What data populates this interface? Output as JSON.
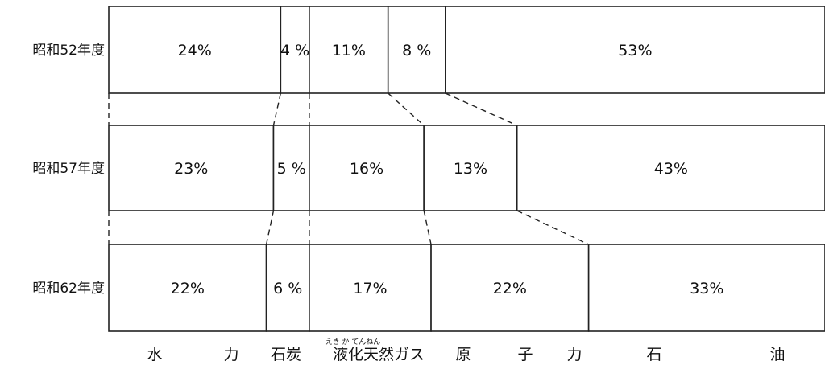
{
  "chart_data": {
    "type": "bar",
    "stacked": true,
    "orientation": "horizontal",
    "normalized_to_percent": true,
    "categories": [
      "昭和52年度",
      "昭和57年度",
      "昭和62年度"
    ],
    "series": [
      {
        "name": "水力",
        "values": [
          24,
          23,
          22
        ],
        "labels": [
          "24%",
          "23%",
          "22%"
        ]
      },
      {
        "name": "石炭",
        "values": [
          4,
          5,
          6
        ],
        "labels": [
          "4 %",
          "5 %",
          "6 %"
        ]
      },
      {
        "name": "液化天然ガス",
        "values": [
          11,
          16,
          17
        ],
        "labels": [
          "11%",
          "16%",
          "17%"
        ]
      },
      {
        "name": "原子力",
        "values": [
          8,
          13,
          22
        ],
        "labels": [
          "8 %",
          "13%",
          "22%"
        ]
      },
      {
        "name": "石油",
        "values": [
          53,
          43,
          33
        ],
        "labels": [
          "53%",
          "43%",
          "33%"
        ]
      }
    ],
    "legend_labels": [
      "水",
      "力",
      "石炭",
      "液化天然ガス",
      "原",
      "子",
      "力",
      "石",
      "油"
    ],
    "ruby": "えき か てんねん",
    "connector_lines": "dashed",
    "colors": {
      "fill": "#ffffff",
      "stroke": "#222222"
    }
  }
}
